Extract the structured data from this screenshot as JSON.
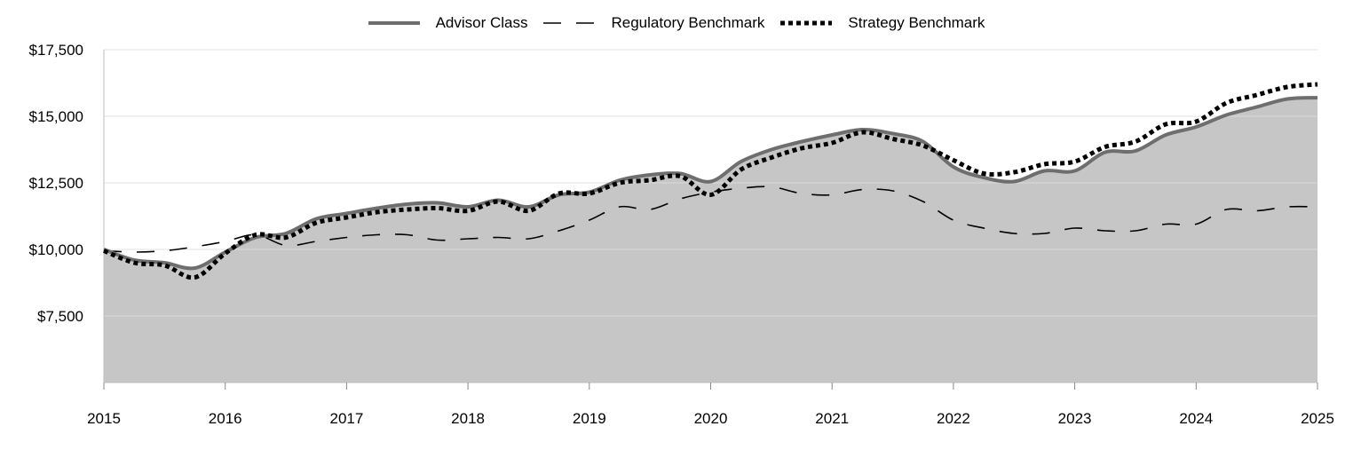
{
  "legend": {
    "items": [
      {
        "label": "Advisor Class",
        "style": "solid",
        "color": "#6e6e6e"
      },
      {
        "label": "Regulatory Benchmark",
        "style": "dashed",
        "color": "#000000"
      },
      {
        "label": "Strategy Benchmark",
        "style": "dotted",
        "color": "#000000"
      }
    ]
  },
  "chart_data": {
    "type": "line",
    "area_fill_series": "Advisor Class",
    "area_fill_color": "#c6c6c6",
    "grid": true,
    "legend_position": "top-center",
    "xlim": [
      2015,
      2025
    ],
    "ylim": [
      5000,
      17500
    ],
    "x_ticks": [
      2015,
      2016,
      2017,
      2018,
      2019,
      2020,
      2021,
      2022,
      2023,
      2024,
      2025
    ],
    "x_tick_labels": [
      "2015",
      "2016",
      "2017",
      "2018",
      "2019",
      "2020",
      "2021",
      "2022",
      "2023",
      "2024",
      "2025"
    ],
    "y_ticks": [
      7500,
      10000,
      12500,
      15000,
      17500
    ],
    "y_tick_labels": [
      "$7,500",
      "$10,000",
      "$12,500",
      "$15,000",
      "$17,500"
    ],
    "series": [
      {
        "name": "Advisor Class",
        "style": "solid",
        "color": "#6e6e6e",
        "x": [
          2015,
          2015.25,
          2015.5,
          2015.75,
          2016,
          2016.25,
          2016.5,
          2016.75,
          2017,
          2017.25,
          2017.5,
          2017.75,
          2018,
          2018.25,
          2018.5,
          2018.75,
          2019,
          2019.25,
          2019.5,
          2019.75,
          2020,
          2020.25,
          2020.5,
          2020.75,
          2021,
          2021.25,
          2021.5,
          2021.75,
          2022,
          2022.25,
          2022.5,
          2022.75,
          2023,
          2023.25,
          2023.5,
          2023.75,
          2024,
          2024.25,
          2024.5,
          2024.75,
          2025
        ],
        "y": [
          10000,
          9600,
          9500,
          9300,
          9900,
          10450,
          10600,
          11150,
          11350,
          11550,
          11700,
          11750,
          11600,
          11850,
          11600,
          12050,
          12150,
          12600,
          12800,
          12850,
          12550,
          13300,
          13750,
          14050,
          14300,
          14500,
          14350,
          14050,
          13100,
          12700,
          12550,
          12950,
          12950,
          13650,
          13700,
          14300,
          14600,
          15050,
          15350,
          15650,
          15700
        ]
      },
      {
        "name": "Regulatory Benchmark",
        "style": "dashed",
        "color": "#000000",
        "x": [
          2015,
          2015.25,
          2015.5,
          2015.75,
          2016,
          2016.25,
          2016.5,
          2016.75,
          2017,
          2017.25,
          2017.5,
          2017.75,
          2018,
          2018.25,
          2018.5,
          2018.75,
          2019,
          2019.25,
          2019.5,
          2019.75,
          2020,
          2020.25,
          2020.5,
          2020.75,
          2021,
          2021.25,
          2021.5,
          2021.75,
          2022,
          2022.25,
          2022.5,
          2022.75,
          2023,
          2023.25,
          2023.5,
          2023.75,
          2024,
          2024.25,
          2024.5,
          2024.75,
          2025
        ],
        "y": [
          9950,
          9900,
          9950,
          10100,
          10300,
          10550,
          10150,
          10300,
          10450,
          10550,
          10550,
          10350,
          10400,
          10450,
          10400,
          10700,
          11100,
          11600,
          11500,
          11900,
          12150,
          12300,
          12350,
          12100,
          12050,
          12250,
          12200,
          11800,
          11100,
          10800,
          10600,
          10600,
          10800,
          10700,
          10700,
          10950,
          10950,
          11500,
          11450,
          11600,
          11600
        ]
      },
      {
        "name": "Strategy Benchmark",
        "style": "dotted",
        "color": "#000000",
        "x": [
          2015,
          2015.25,
          2015.5,
          2015.75,
          2016,
          2016.25,
          2016.5,
          2016.75,
          2017,
          2017.25,
          2017.5,
          2017.75,
          2018,
          2018.25,
          2018.5,
          2018.75,
          2019,
          2019.25,
          2019.5,
          2019.75,
          2020,
          2020.25,
          2020.5,
          2020.75,
          2021,
          2021.25,
          2021.5,
          2021.75,
          2022,
          2022.25,
          2022.5,
          2022.75,
          2023,
          2023.25,
          2023.5,
          2023.75,
          2024,
          2024.25,
          2024.5,
          2024.75,
          2025
        ],
        "y": [
          9950,
          9500,
          9400,
          8950,
          9850,
          10550,
          10450,
          11000,
          11200,
          11400,
          11500,
          11550,
          11450,
          11800,
          11450,
          12100,
          12100,
          12500,
          12600,
          12750,
          12050,
          13000,
          13450,
          13800,
          14000,
          14400,
          14150,
          13900,
          13350,
          12850,
          12900,
          13200,
          13300,
          13850,
          14050,
          14700,
          14800,
          15500,
          15800,
          16100,
          16200
        ]
      }
    ]
  }
}
